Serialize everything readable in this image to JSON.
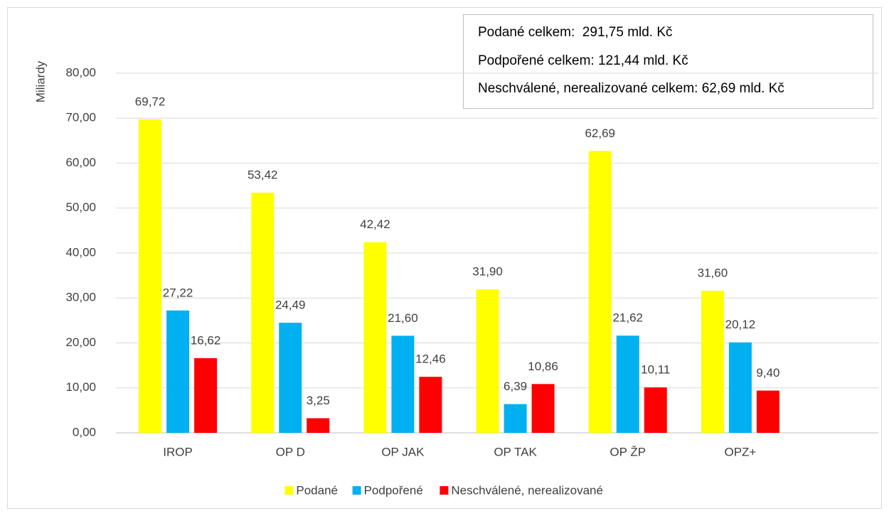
{
  "chart_data": {
    "type": "bar",
    "y_label": "Miliardy",
    "categories": [
      "IROP",
      "OP D",
      "OP JAK",
      "OP TAK",
      "OP ŽP",
      "OPZ+"
    ],
    "series": [
      {
        "name": "Podané",
        "color": "#ffff00",
        "values": [
          69.72,
          53.42,
          42.42,
          31.9,
          62.69,
          31.6
        ],
        "value_labels": [
          "69,72",
          "53,42",
          "42,42",
          "31,90",
          "62,69",
          "31,60"
        ]
      },
      {
        "name": "Podpořené",
        "color": "#00b0f0",
        "values": [
          27.22,
          24.49,
          21.6,
          6.39,
          21.62,
          20.12
        ],
        "value_labels": [
          "27,22",
          "24,49",
          "21,60",
          "6,39",
          "21,62",
          "20,12"
        ]
      },
      {
        "name": "Neschválené, nerealizované",
        "color": "#ff0000",
        "values": [
          16.62,
          3.25,
          12.46,
          10.86,
          10.11,
          9.4
        ],
        "value_labels": [
          "16,62",
          "3,25",
          "12,46",
          "10,86",
          "10,11",
          "9,40"
        ]
      }
    ],
    "ylim": [
      0,
      80
    ],
    "yticks": [
      {
        "value": 0,
        "label": "0,00"
      },
      {
        "value": 10,
        "label": "10,00"
      },
      {
        "value": 20,
        "label": "20,00"
      },
      {
        "value": 30,
        "label": "30,00"
      },
      {
        "value": 40,
        "label": "40,00"
      },
      {
        "value": 50,
        "label": "50,00"
      },
      {
        "value": 60,
        "label": "60,00"
      },
      {
        "value": 70,
        "label": "70,00"
      },
      {
        "value": 80,
        "label": "80,00"
      }
    ],
    "grid": true,
    "legend": "bottom",
    "annotations": [
      "Podané celkem:  291,75 mld. Kč",
      "Podpořené celkem: 121,44 mld. Kč",
      "Neschválené, nerealizované celkem: 62,69 mld. Kč"
    ]
  }
}
